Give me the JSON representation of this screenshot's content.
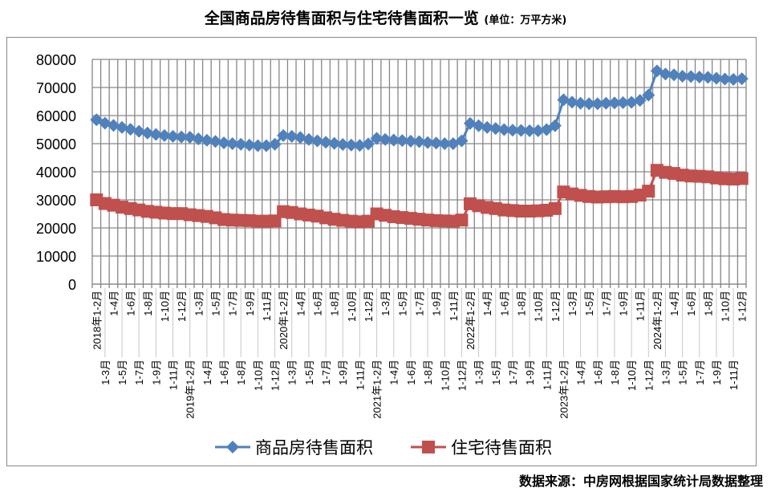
{
  "chart_data": {
    "type": "line",
    "title": "全国商品房待售面积与住宅待售面积一览",
    "unit": "(单位：万平方米)",
    "xlabel": "",
    "ylabel": "",
    "ylim": [
      0,
      80000
    ],
    "yticks": [
      "0",
      "10000",
      "20000",
      "30000",
      "40000",
      "50000",
      "60000",
      "70000",
      "80000"
    ],
    "years": [
      "2018年",
      "2019年",
      "2020年",
      "2021年",
      "2022年",
      "2023年",
      "2024年"
    ],
    "months": [
      "1-2月",
      "1-3月",
      "1-4月",
      "1-5月",
      "1-6月",
      "1-7月",
      "1-8月",
      "1-9月",
      "1-10月",
      "1-11月",
      "1-12月"
    ],
    "grid": true,
    "legend_position": "bottom",
    "series": [
      {
        "name": "商品房待售面积",
        "color": "#4F81BD",
        "marker": "diamond",
        "values": [
          58500,
          57300,
          56500,
          55800,
          55100,
          54400,
          53800,
          53300,
          52900,
          52600,
          52400,
          52300,
          51700,
          51200,
          50800,
          50300,
          50000,
          49800,
          49500,
          49300,
          49300,
          49800,
          52900,
          52600,
          52200,
          51500,
          51000,
          50500,
          50100,
          49700,
          49500,
          49400,
          49900,
          51900,
          51500,
          51300,
          51100,
          50900,
          50700,
          50400,
          50200,
          50000,
          50000,
          51000,
          57200,
          56400,
          55800,
          55400,
          55000,
          54800,
          54700,
          54600,
          54600,
          55000,
          56400,
          65600,
          64800,
          64400,
          64200,
          64200,
          64400,
          64500,
          64600,
          64700,
          65400,
          67300,
          75900,
          74800,
          74500,
          74000,
          73900,
          73700,
          73600,
          73300,
          73000,
          72900,
          73100
        ]
      },
      {
        "name": "住宅待售面积",
        "color": "#C0504D",
        "marker": "square",
        "values": [
          30000,
          28700,
          28100,
          27400,
          26900,
          26400,
          25900,
          25600,
          25300,
          25100,
          25100,
          24700,
          24400,
          24100,
          23600,
          23000,
          22800,
          22700,
          22600,
          22400,
          22400,
          22500,
          25800,
          25500,
          25000,
          24600,
          24200,
          23600,
          23100,
          22700,
          22400,
          22200,
          22400,
          25000,
          24500,
          24000,
          23700,
          23400,
          23100,
          22800,
          22600,
          22500,
          22400,
          22800,
          28600,
          27900,
          27300,
          26900,
          26400,
          26200,
          26000,
          26000,
          26100,
          26300,
          26900,
          32800,
          32100,
          31600,
          31200,
          31000,
          31100,
          31200,
          31100,
          31200,
          31700,
          33100,
          40500,
          39800,
          39400,
          38800,
          38500,
          38400,
          38200,
          37800,
          37500,
          37400,
          37600
        ]
      }
    ]
  },
  "source": "数据来源：中房网根据国家统计局数据整理"
}
